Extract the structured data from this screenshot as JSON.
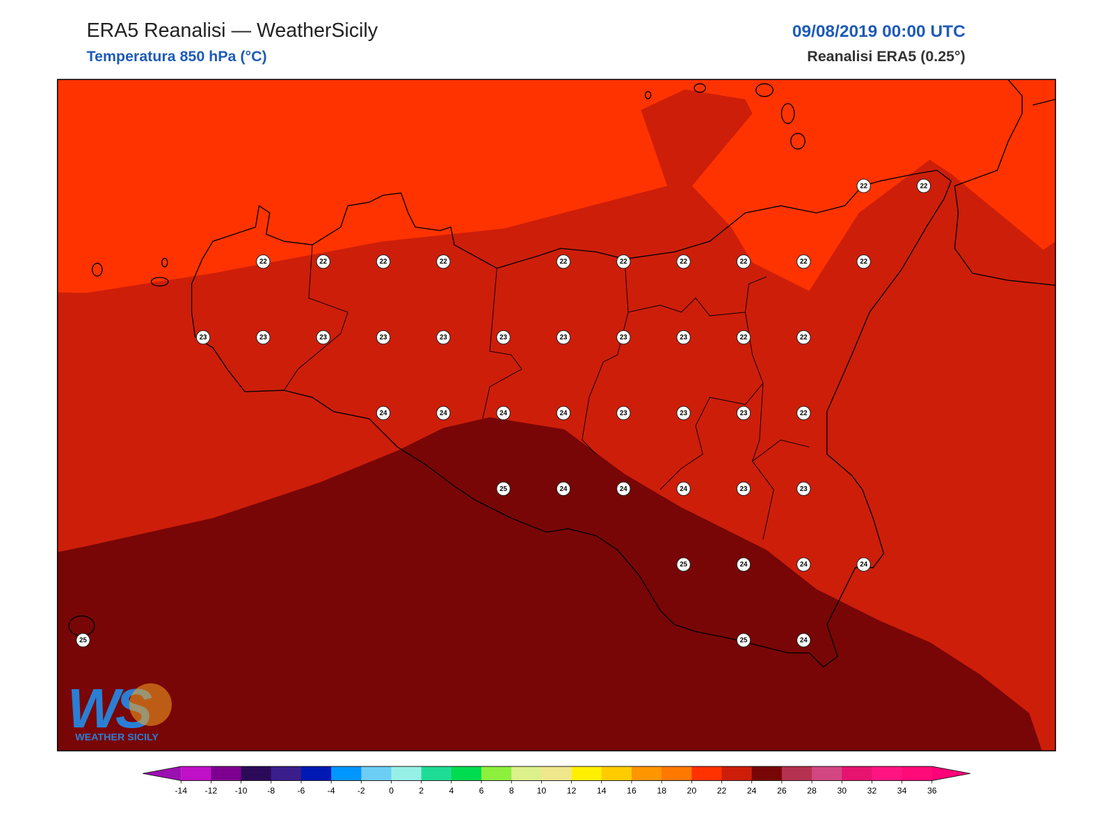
{
  "header": {
    "title": "ERA5 Reanalisi — WeatherSicily",
    "subtitle": "Temperatura 850 hPa (°C)",
    "date": "09/08/2019 00:00 UTC",
    "source": "Reanalisi ERA5 (0.25°)"
  },
  "stations": {
    "values": [
      [
        null,
        null,
        null,
        null,
        null,
        null,
        null,
        null,
        null,
        null,
        null,
        null,
        null,
        22,
        22
      ],
      [
        null,
        null,
        null,
        22,
        22,
        22,
        22,
        null,
        22,
        22,
        22,
        22,
        22,
        22,
        null
      ],
      [
        null,
        null,
        23,
        23,
        23,
        23,
        23,
        23,
        23,
        23,
        23,
        22,
        22,
        null,
        null
      ],
      [
        null,
        null,
        null,
        null,
        null,
        24,
        24,
        24,
        24,
        23,
        23,
        23,
        22,
        null,
        null
      ],
      [
        null,
        null,
        null,
        null,
        null,
        null,
        null,
        25,
        24,
        24,
        24,
        23,
        23,
        null,
        null
      ],
      [
        null,
        null,
        null,
        null,
        null,
        null,
        null,
        null,
        null,
        null,
        25,
        24,
        24,
        24,
        null
      ],
      [
        25,
        null,
        null,
        null,
        null,
        null,
        null,
        null,
        null,
        null,
        null,
        25,
        24,
        null,
        null
      ]
    ]
  },
  "colorbar": {
    "ticks": [
      -14,
      -12,
      -10,
      -8,
      -6,
      -4,
      -2,
      0,
      2,
      4,
      6,
      8,
      10,
      12,
      14,
      16,
      18,
      20,
      22,
      24,
      26,
      28,
      30,
      32,
      34,
      36
    ],
    "colors": [
      "#c010c8",
      "#7d0090",
      "#2c0a5a",
      "#3a1e8c",
      "#0018b4",
      "#0096ff",
      "#6ccdf5",
      "#96f0e6",
      "#1edc96",
      "#00dc50",
      "#8cf03c",
      "#dcf08c",
      "#f0e68c",
      "#ffef00",
      "#ffcc00",
      "#ff9600",
      "#ff7800",
      "#ff3200",
      "#cd1e0a",
      "#780606",
      "#b43250",
      "#d24682",
      "#e6146e",
      "#ff1482",
      "#ff0a78"
    ],
    "extend_colors": [
      "#9b10b0",
      "#ff0078"
    ]
  },
  "logo": {
    "letters": "WS",
    "text": "WEATHER SICILY"
  }
}
